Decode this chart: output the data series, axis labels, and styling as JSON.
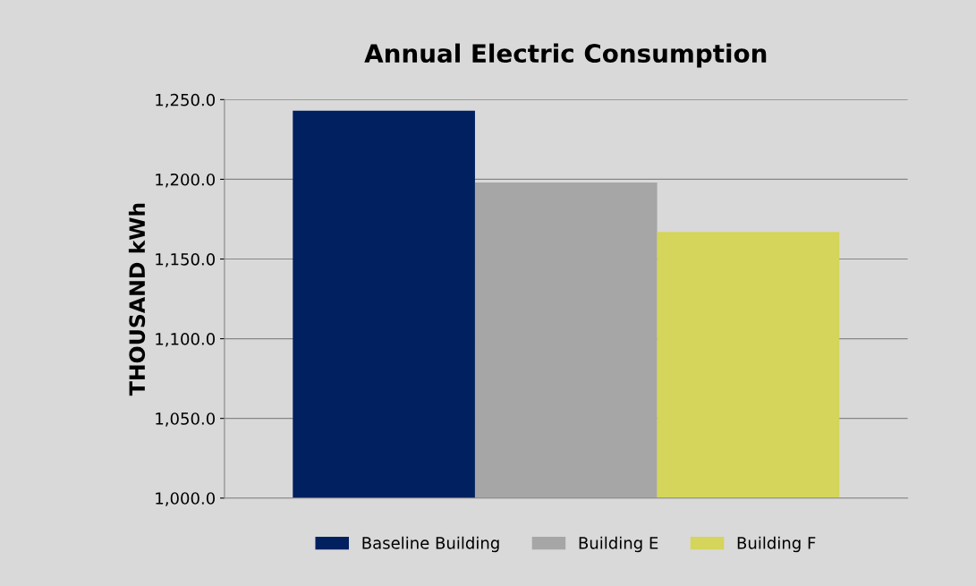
{
  "chart_data": {
    "type": "bar",
    "title": "Annual Electric Consumption",
    "ylabel": "THOUSAND kWh",
    "categories": [
      null
    ],
    "series": [
      {
        "name": "Baseline Building",
        "color": "#002060",
        "values": [
          1243
        ]
      },
      {
        "name": "Building E",
        "color": "#a6a6a6",
        "values": [
          1198
        ]
      },
      {
        "name": "Building F",
        "color": "#d4d55a",
        "values": [
          1167
        ]
      }
    ],
    "ylim": [
      1000,
      1250
    ],
    "yticks": [
      {
        "value": 1000,
        "label": "1,000.0"
      },
      {
        "value": 1050,
        "label": "1,050.0"
      },
      {
        "value": 1100,
        "label": "1,100.0"
      },
      {
        "value": 1150,
        "label": "1,150.0"
      },
      {
        "value": 1200,
        "label": "1,200.0"
      },
      {
        "value": 1250,
        "label": "1,250.0"
      }
    ],
    "grid": "y",
    "legend": "bottom"
  }
}
